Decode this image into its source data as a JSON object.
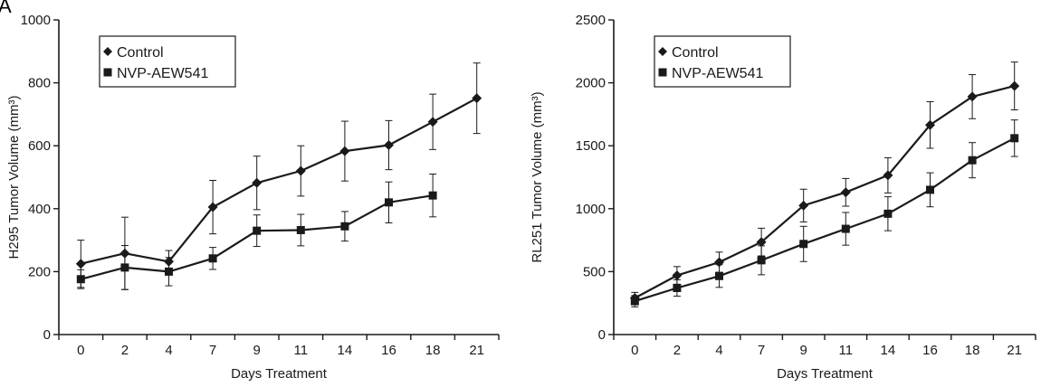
{
  "figure": {
    "panel_label": "A"
  },
  "chart_data": [
    {
      "type": "line",
      "title": "",
      "xlabel": "Days Treatment",
      "ylabel": "H295 Tumor Volume (mm³)",
      "categories": [
        "0",
        "2",
        "4",
        "7",
        "9",
        "11",
        "14",
        "16",
        "18",
        "21"
      ],
      "ylim": [
        0,
        1000
      ],
      "yticks": [
        0,
        200,
        400,
        600,
        800,
        1000
      ],
      "grid": false,
      "legend_position": "top-left",
      "series": [
        {
          "name": "Control",
          "marker": "diamond",
          "color": "#1a1a1a",
          "values": [
            225,
            258,
            232,
            405,
            482,
            520,
            583,
            602,
            676,
            751
          ],
          "errors": [
            75,
            115,
            35,
            85,
            85,
            80,
            95,
            78,
            88,
            112
          ]
        },
        {
          "name": "NVP-AEW541",
          "marker": "square",
          "color": "#1a1a1a",
          "values": [
            176,
            213,
            200,
            242,
            330,
            332,
            344,
            420,
            442,
            null
          ],
          "errors": [
            30,
            70,
            45,
            35,
            50,
            50,
            47,
            65,
            68,
            null
          ]
        }
      ]
    },
    {
      "type": "line",
      "title": "",
      "xlabel": "Days Treatment",
      "ylabel": "RL251 Tumor Volume (mm³)",
      "categories": [
        "0",
        "2",
        "4",
        "7",
        "9",
        "11",
        "14",
        "16",
        "18",
        "21"
      ],
      "ylim": [
        0,
        2500
      ],
      "yticks": [
        0,
        500,
        1000,
        1500,
        2000,
        2500
      ],
      "grid": false,
      "legend_position": "top-left",
      "series": [
        {
          "name": "Control",
          "marker": "diamond",
          "color": "#1a1a1a",
          "values": [
            290,
            470,
            575,
            735,
            1025,
            1130,
            1265,
            1665,
            1890,
            1975
          ],
          "errors": [
            45,
            70,
            80,
            110,
            130,
            110,
            140,
            185,
            175,
            190
          ]
        },
        {
          "name": "NVP-AEW541",
          "marker": "square",
          "color": "#1a1a1a",
          "values": [
            265,
            370,
            465,
            590,
            720,
            840,
            960,
            1150,
            1385,
            1560
          ],
          "errors": [
            45,
            65,
            90,
            115,
            140,
            130,
            135,
            135,
            140,
            145
          ]
        }
      ]
    }
  ]
}
